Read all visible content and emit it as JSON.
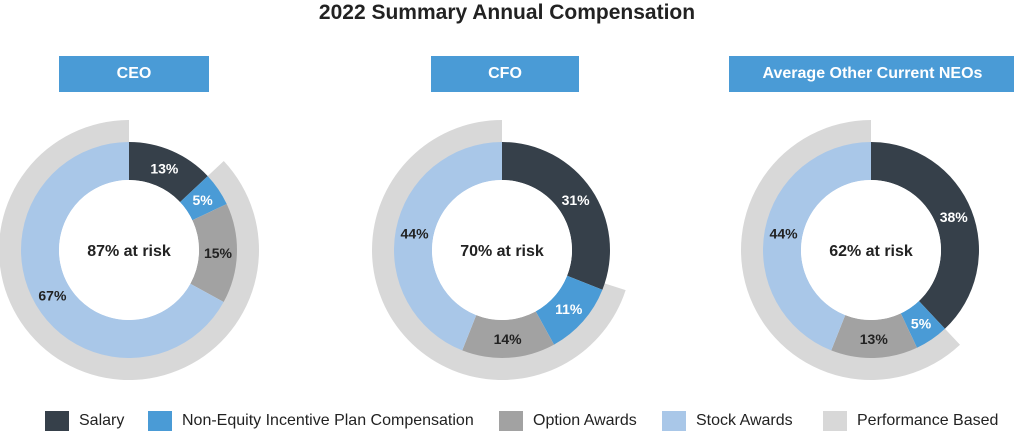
{
  "title": "2022 Summary Annual Compensation",
  "colors": {
    "salary": "#36404a",
    "non_equity": "#4a9bd6",
    "option": "#a2a2a2",
    "stock": "#a9c7e8",
    "performance": "#d8d8d8"
  },
  "chart_data": [
    {
      "type": "pie",
      "header": "CEO",
      "center_label": "87% at risk",
      "performance_based_pct": 87,
      "slices": [
        {
          "series": "Salary",
          "value": 13,
          "label": "13%"
        },
        {
          "series": "Non-Equity Incentive Plan Compensation",
          "value": 5,
          "label": "5%"
        },
        {
          "series": "Option Awards",
          "value": 15,
          "label": "15%"
        },
        {
          "series": "Stock Awards",
          "value": 67,
          "label": "67%"
        }
      ]
    },
    {
      "type": "pie",
      "header": "CFO",
      "center_label": "70% at risk",
      "performance_based_pct": 70,
      "slices": [
        {
          "series": "Salary",
          "value": 31,
          "label": "31%"
        },
        {
          "series": "Non-Equity Incentive Plan Compensation",
          "value": 11,
          "label": "11%"
        },
        {
          "series": "Option Awards",
          "value": 14,
          "label": "14%"
        },
        {
          "series": "Stock Awards",
          "value": 44,
          "label": "44%"
        }
      ]
    },
    {
      "type": "pie",
      "header": "Average Other Current NEOs",
      "center_label": "62% at risk",
      "performance_based_pct": 62,
      "slices": [
        {
          "series": "Salary",
          "value": 38,
          "label": "38%"
        },
        {
          "series": "Non-Equity Incentive Plan Compensation",
          "value": 5,
          "label": "5%"
        },
        {
          "series": "Option Awards",
          "value": 13,
          "label": "13%"
        },
        {
          "series": "Stock Awards",
          "value": 44,
          "label": "44%"
        }
      ]
    }
  ],
  "legend": [
    {
      "label": "Salary",
      "color": "#36404a"
    },
    {
      "label": "Non-Equity Incentive Plan Compensation",
      "color": "#4a9bd6"
    },
    {
      "label": "Option Awards",
      "color": "#a2a2a2"
    },
    {
      "label": "Stock Awards",
      "color": "#a9c7e8"
    },
    {
      "label": "Performance Based",
      "color": "#d8d8d8"
    }
  ]
}
